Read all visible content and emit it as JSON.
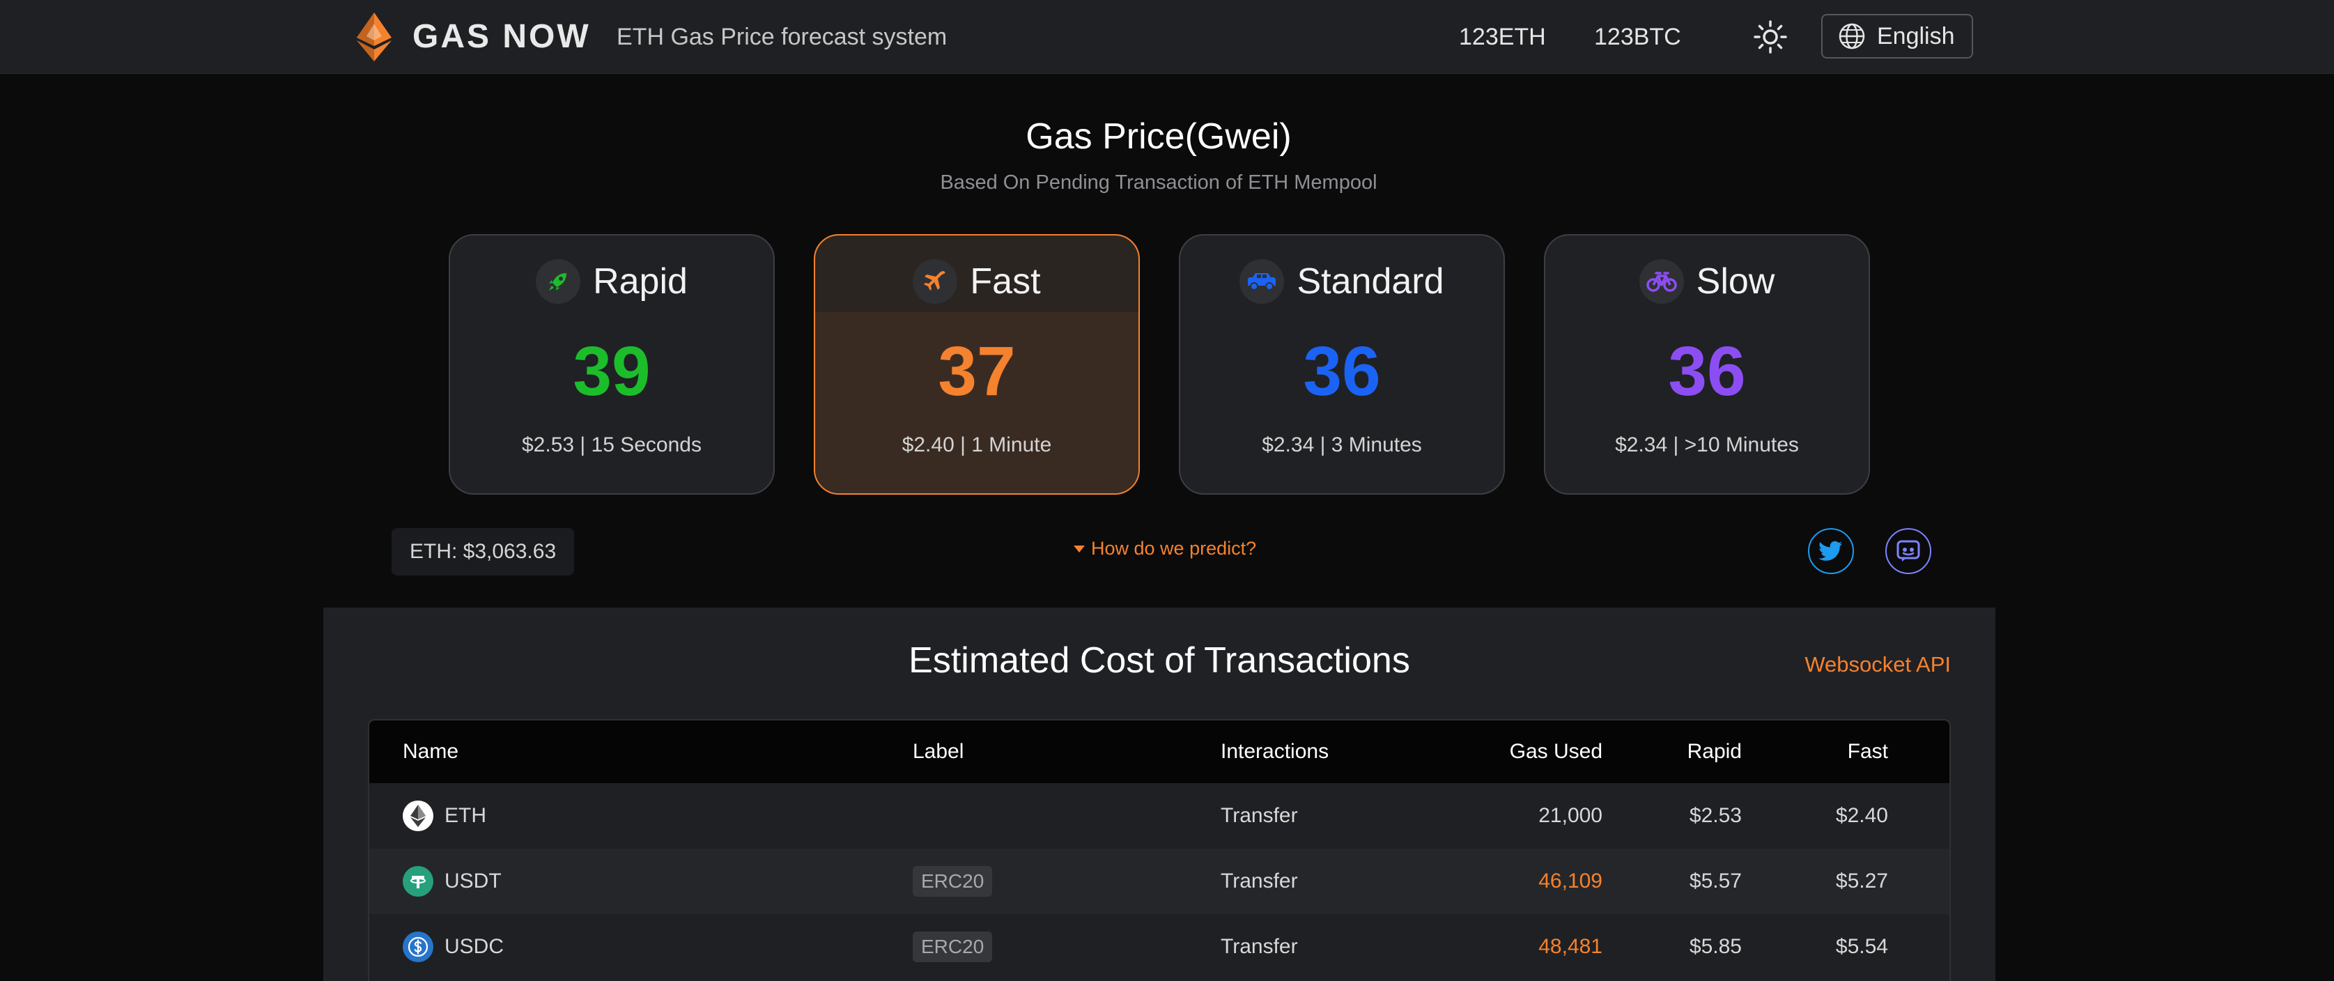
{
  "header": {
    "brand": "GAS NOW",
    "tagline": "ETH Gas Price forecast system",
    "ticker_eth": "123ETH",
    "ticker_btc": "123BTC",
    "language": "English"
  },
  "hero": {
    "title": "Gas Price(Gwei)",
    "subtitle": "Based On Pending Transaction of ETH Mempool"
  },
  "cards": [
    {
      "name": "Rapid",
      "value": "39",
      "detail": "$2.53 | 15 Seconds",
      "color": "#1bbd2a",
      "icon": "rocket-icon"
    },
    {
      "name": "Fast",
      "value": "37",
      "detail": "$2.40 | 1 Minute",
      "color": "#f5822e",
      "icon": "plane-icon"
    },
    {
      "name": "Standard",
      "value": "36",
      "detail": "$2.34 | 3 Minutes",
      "color": "#1b63f5",
      "icon": "car-icon"
    },
    {
      "name": "Slow",
      "value": "36",
      "detail": "$2.34 | >10 Minutes",
      "color": "#8c4ef2",
      "icon": "bike-icon"
    }
  ],
  "info": {
    "eth_price": "ETH: $3,063.63",
    "how_link": "How do we predict?"
  },
  "panel": {
    "title": "Estimated Cost of Transactions",
    "websocket": "Websocket API",
    "headers": {
      "name": "Name",
      "label": "Label",
      "interactions": "Interactions",
      "gas_used": "Gas Used",
      "rapid": "Rapid",
      "fast": "Fast"
    },
    "rows": [
      {
        "name": "ETH",
        "label": "",
        "interactions": "Transfer",
        "gas_used": "21,000",
        "rapid": "$2.53",
        "fast": "$2.40"
      },
      {
        "name": "USDT",
        "label": "ERC20",
        "interactions": "Transfer",
        "gas_used": "46,109",
        "rapid": "$5.57",
        "fast": "$5.27"
      },
      {
        "name": "USDC",
        "label": "ERC20",
        "interactions": "Transfer",
        "gas_used": "48,481",
        "rapid": "$5.85",
        "fast": "$5.54"
      }
    ]
  }
}
